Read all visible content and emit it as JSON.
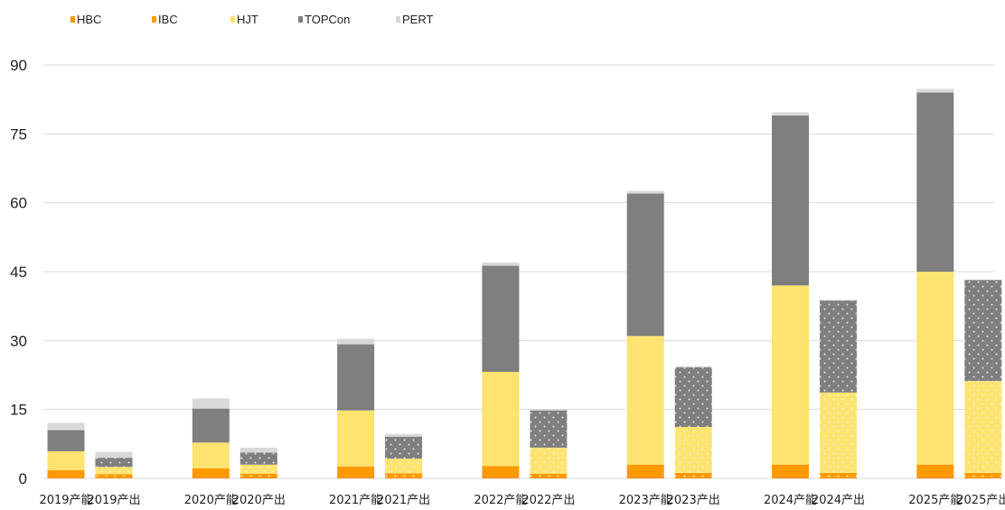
{
  "chart_data": {
    "type": "bar",
    "stacked": true,
    "title": "",
    "xlabel": "",
    "ylabel": "",
    "ylim": [
      0,
      90
    ],
    "yticks": [
      0,
      15,
      30,
      45,
      60,
      75,
      90
    ],
    "grid": true,
    "legend_position": "top-left",
    "categories": [
      "2019产能",
      "2019产出",
      "2020产能",
      "2020产出",
      "2021产能",
      "2021产出",
      "2022产能",
      "2022产出",
      "2023产能",
      "2023产出",
      "2024产能",
      "2024产出",
      "2025产能",
      "2025产出"
    ],
    "patterned_categories": [
      "2019产出",
      "2020产出",
      "2021产出",
      "2022产出",
      "2023产出",
      "2024产出",
      "2025产出"
    ],
    "series": [
      {
        "name": "HBC",
        "color": "#f7941d",
        "values": [
          0.2,
          0.1,
          0.3,
          0.1,
          0.3,
          0.1,
          0.4,
          0.1,
          0.5,
          0.2,
          0.5,
          0.2,
          0.5,
          0.2
        ]
      },
      {
        "name": "IBC",
        "color": "#ff9900",
        "values": [
          1.6,
          0.8,
          1.9,
          0.9,
          2.3,
          1.0,
          2.3,
          0.9,
          2.5,
          1.0,
          2.5,
          1.0,
          2.5,
          1.0
        ]
      },
      {
        "name": "HJT",
        "color": "#fde36f",
        "values": [
          4.1,
          1.6,
          5.6,
          2.0,
          12.2,
          3.2,
          20.5,
          5.7,
          28.0,
          10.0,
          39.0,
          17.5,
          42.0,
          20.0
        ]
      },
      {
        "name": "TOPCon",
        "color": "#7f7f7f",
        "values": [
          4.6,
          2.0,
          7.4,
          2.6,
          14.4,
          4.8,
          23.1,
          8.1,
          31.0,
          13.0,
          37.0,
          20.0,
          39.0,
          22.0
        ]
      },
      {
        "name": "PERT",
        "color": "#d9d9d9",
        "values": [
          1.6,
          1.3,
          2.2,
          1.1,
          1.2,
          0.6,
          0.7,
          0.3,
          0.6,
          0.2,
          0.7,
          0.2,
          0.8,
          0.1
        ]
      }
    ]
  }
}
